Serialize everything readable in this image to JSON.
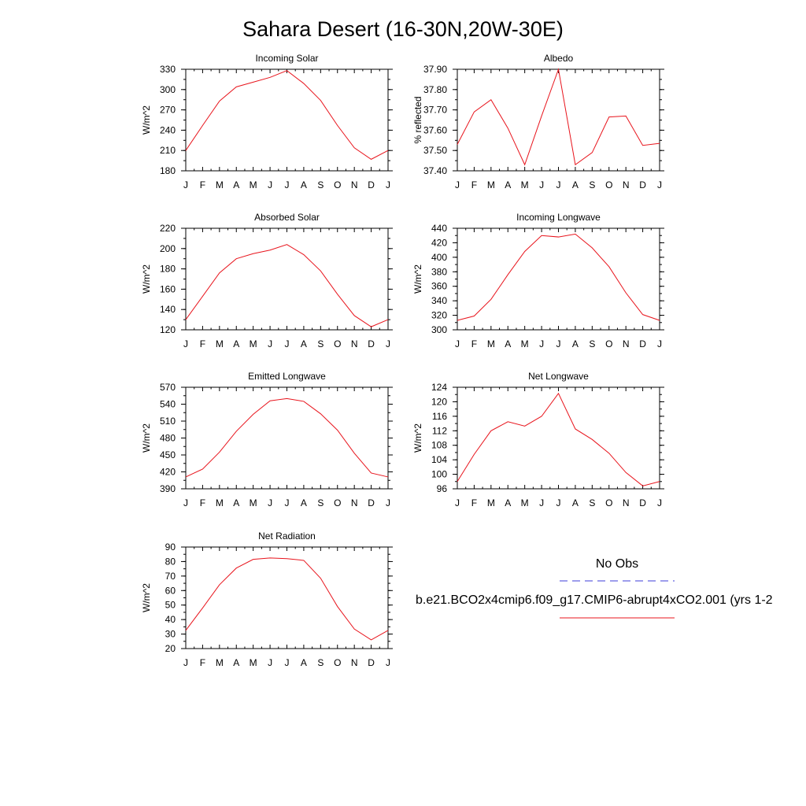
{
  "title": "Sahara Desert (16-30N,20W-30E)",
  "months": [
    "J",
    "F",
    "M",
    "A",
    "M",
    "J",
    "J",
    "A",
    "S",
    "O",
    "N",
    "D",
    "J"
  ],
  "line_color": "#e8141c",
  "obs_color": "#3d3dd8",
  "legend": {
    "obs_label": "No Obs",
    "model_label": "b.e21.BCO2x4cmip6.f09_g17.CMIP6-abrupt4xCO2.001 (yrs 1-2"
  },
  "chart_data": [
    {
      "type": "line",
      "title": "Incoming Solar",
      "ylabel": "W/m^2",
      "ylim": [
        180,
        330
      ],
      "yticks": [
        180,
        210,
        240,
        270,
        300,
        330
      ],
      "ytick_labels": [
        "180",
        "210",
        "240",
        "270",
        "300",
        "330"
      ],
      "ytick_minor_step": 15,
      "x": [
        "J",
        "F",
        "M",
        "A",
        "M",
        "J",
        "J",
        "A",
        "S",
        "O",
        "N",
        "D",
        "J"
      ],
      "series": [
        {
          "values": [
            210,
            247,
            283,
            304,
            311,
            318,
            328,
            309,
            284,
            247,
            214,
            197,
            210
          ]
        }
      ]
    },
    {
      "type": "line",
      "title": "Albedo",
      "ylabel": "% reflected",
      "ylim": [
        37.4,
        37.9
      ],
      "yticks": [
        37.4,
        37.5,
        37.6,
        37.7,
        37.8,
        37.9
      ],
      "ytick_labels": [
        "37.40",
        "37.50",
        "37.60",
        "37.70",
        "37.80",
        "37.90"
      ],
      "ytick_minor_step": 0.05,
      "x": [
        "J",
        "F",
        "M",
        "A",
        "M",
        "J",
        "J",
        "A",
        "S",
        "O",
        "N",
        "D",
        "J"
      ],
      "series": [
        {
          "values": [
            37.53,
            37.69,
            37.75,
            37.61,
            37.43,
            37.67,
            37.9,
            37.43,
            37.49,
            37.665,
            37.67,
            37.525,
            37.535
          ]
        }
      ]
    },
    {
      "type": "line",
      "title": "Absorbed Solar",
      "ylabel": "W/m^2",
      "ylim": [
        120,
        220
      ],
      "yticks": [
        120,
        140,
        160,
        180,
        200,
        220
      ],
      "ytick_labels": [
        "120",
        "140",
        "160",
        "180",
        "200",
        "220"
      ],
      "ytick_minor_step": 10,
      "x": [
        "J",
        "F",
        "M",
        "A",
        "M",
        "J",
        "J",
        "A",
        "S",
        "O",
        "N",
        "D",
        "J"
      ],
      "series": [
        {
          "values": [
            130,
            153,
            176,
            190,
            195,
            198.5,
            204,
            194,
            178,
            155,
            134,
            123,
            130
          ]
        }
      ]
    },
    {
      "type": "line",
      "title": "Incoming Longwave",
      "ylabel": "W/m^2",
      "ylim": [
        300,
        440
      ],
      "yticks": [
        300,
        320,
        340,
        360,
        380,
        400,
        420,
        440
      ],
      "ytick_labels": [
        "300",
        "320",
        "340",
        "360",
        "380",
        "400",
        "420",
        "440"
      ],
      "ytick_minor_step": 10,
      "x": [
        "J",
        "F",
        "M",
        "A",
        "M",
        "J",
        "J",
        "A",
        "S",
        "O",
        "N",
        "D",
        "J"
      ],
      "series": [
        {
          "values": [
            313,
            319,
            342,
            376,
            408,
            430,
            428,
            432,
            413,
            387,
            351,
            321,
            313
          ]
        }
      ]
    },
    {
      "type": "line",
      "title": "Emitted Longwave",
      "ylabel": "W/m^2",
      "ylim": [
        390,
        570
      ],
      "yticks": [
        390,
        420,
        450,
        480,
        510,
        540,
        570
      ],
      "ytick_labels": [
        "390",
        "420",
        "450",
        "480",
        "510",
        "540",
        "570"
      ],
      "ytick_minor_step": 15,
      "x": [
        "J",
        "F",
        "M",
        "A",
        "M",
        "J",
        "J",
        "A",
        "S",
        "O",
        "N",
        "D",
        "J"
      ],
      "series": [
        {
          "values": [
            411,
            425,
            455,
            492,
            522,
            546,
            550,
            545,
            523,
            494,
            453,
            418,
            411
          ]
        }
      ]
    },
    {
      "type": "line",
      "title": "Net Longwave",
      "ylabel": "W/m^2",
      "ylim": [
        96,
        124
      ],
      "yticks": [
        96,
        100,
        104,
        108,
        112,
        116,
        120,
        124
      ],
      "ytick_labels": [
        "96",
        "100",
        "104",
        "108",
        "112",
        "116",
        "120",
        "124"
      ],
      "ytick_minor_step": 2,
      "x": [
        "J",
        "F",
        "M",
        "A",
        "M",
        "J",
        "J",
        "A",
        "S",
        "O",
        "N",
        "D",
        "J"
      ],
      "series": [
        {
          "values": [
            98,
            105.5,
            112,
            114.5,
            113.3,
            116,
            122.3,
            112.5,
            109.6,
            105.8,
            100.5,
            96.8,
            98
          ]
        }
      ]
    },
    {
      "type": "line",
      "title": "Net Radiation",
      "ylabel": "W/m^2",
      "ylim": [
        20,
        90
      ],
      "yticks": [
        20,
        30,
        40,
        50,
        60,
        70,
        80,
        90
      ],
      "ytick_labels": [
        "20",
        "30",
        "40",
        "50",
        "60",
        "70",
        "80",
        "90"
      ],
      "ytick_minor_step": 5,
      "x": [
        "J",
        "F",
        "M",
        "A",
        "M",
        "J",
        "J",
        "A",
        "S",
        "O",
        "N",
        "D",
        "J"
      ],
      "series": [
        {
          "values": [
            32.5,
            48,
            64,
            75.5,
            81.5,
            82.5,
            82,
            80.8,
            68.5,
            49,
            33.5,
            26,
            32.5
          ]
        }
      ]
    }
  ]
}
